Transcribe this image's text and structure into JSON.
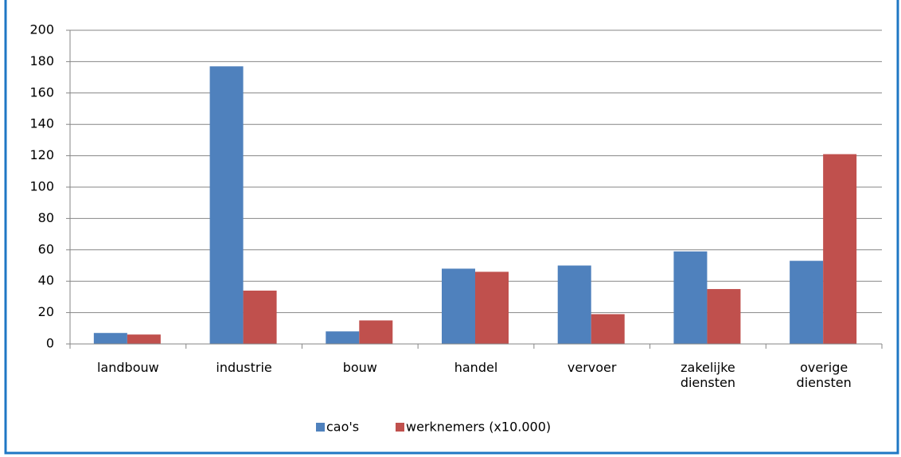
{
  "chart_data": {
    "type": "bar",
    "categories": [
      "landbouw",
      "industrie",
      "bouw",
      "handel",
      "vervoer",
      "zakelijke diensten",
      "overige diensten"
    ],
    "series": [
      {
        "name": "cao's",
        "color": "#4f81bd",
        "values": [
          7,
          177,
          8,
          48,
          50,
          59,
          53
        ]
      },
      {
        "name": "werknemers (x10.000)",
        "color": "#c0504d",
        "values": [
          6,
          34,
          15,
          46,
          19,
          35,
          121
        ]
      }
    ],
    "ylim": [
      0,
      200
    ],
    "yticks": [
      0,
      20,
      40,
      60,
      80,
      100,
      120,
      140,
      160,
      180,
      200
    ],
    "grid": true,
    "legend": "bottom"
  }
}
